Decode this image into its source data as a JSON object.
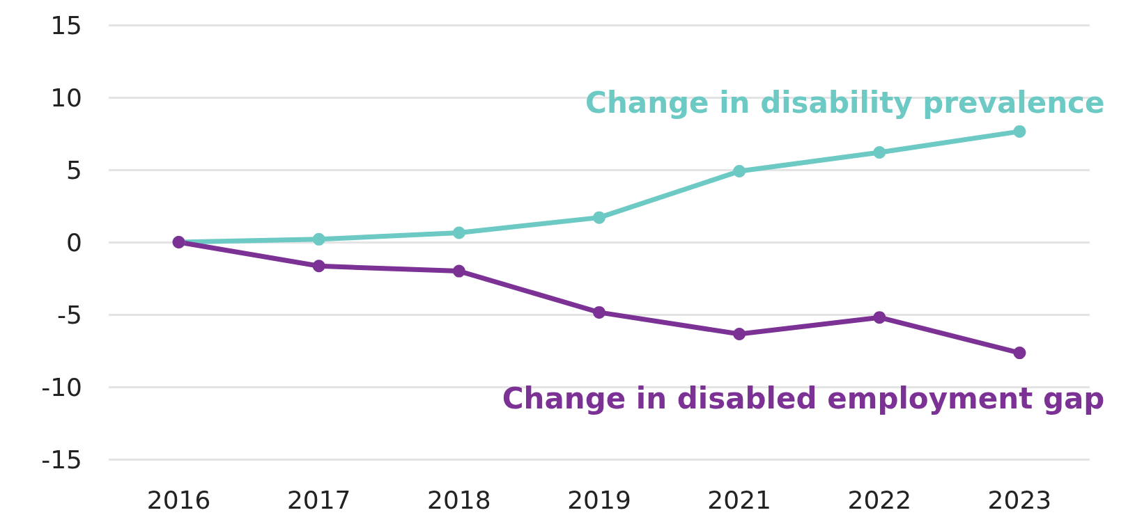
{
  "chart_data": {
    "type": "line",
    "categories": [
      "2016",
      "2017",
      "2018",
      "2019",
      "2021",
      "2022",
      "2023"
    ],
    "series": [
      {
        "name": "Change in disability prevalence",
        "color": "#6cc9c4",
        "values": [
          0,
          0.2,
          0.65,
          1.7,
          4.9,
          6.2,
          7.65
        ]
      },
      {
        "name": "Change in disabled employment gap",
        "color": "#7b3294",
        "values": [
          0,
          -1.65,
          -2.0,
          -4.85,
          -6.35,
          -5.2,
          -7.65
        ]
      }
    ],
    "ylim": [
      -15,
      15
    ],
    "yticks": [
      -15,
      -10,
      -5,
      0,
      5,
      10,
      15
    ],
    "grid": "y",
    "legend": false,
    "marker": "circle",
    "line_style": "solid"
  }
}
